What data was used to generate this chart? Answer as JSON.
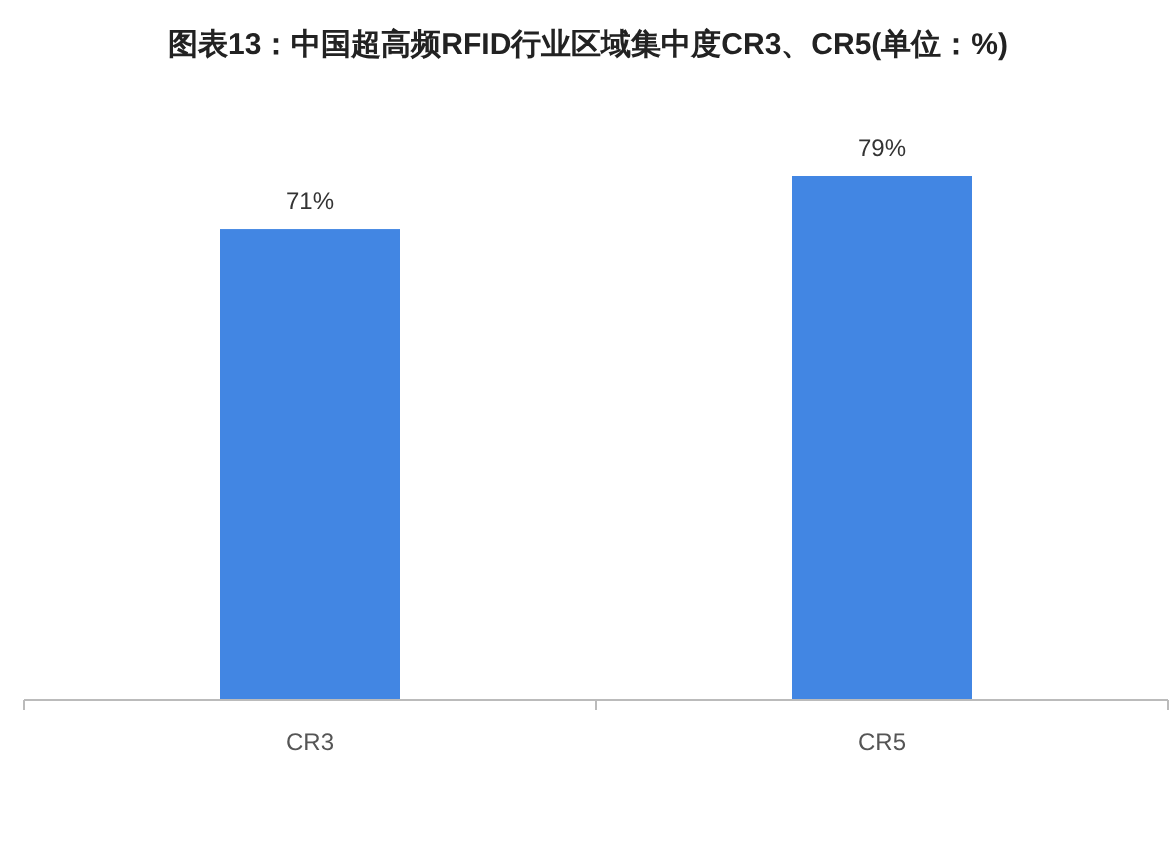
{
  "chart_data": {
    "type": "bar",
    "title": "图表13：中国超高频RFID行业区域集中度CR3、CR5(单位：%)",
    "categories": [
      "CR3",
      "CR5"
    ],
    "series": [
      {
        "color": "#4286e3",
        "values": [
          71,
          79
        ],
        "value_labels": [
          "71%",
          "79%"
        ]
      }
    ]
  }
}
